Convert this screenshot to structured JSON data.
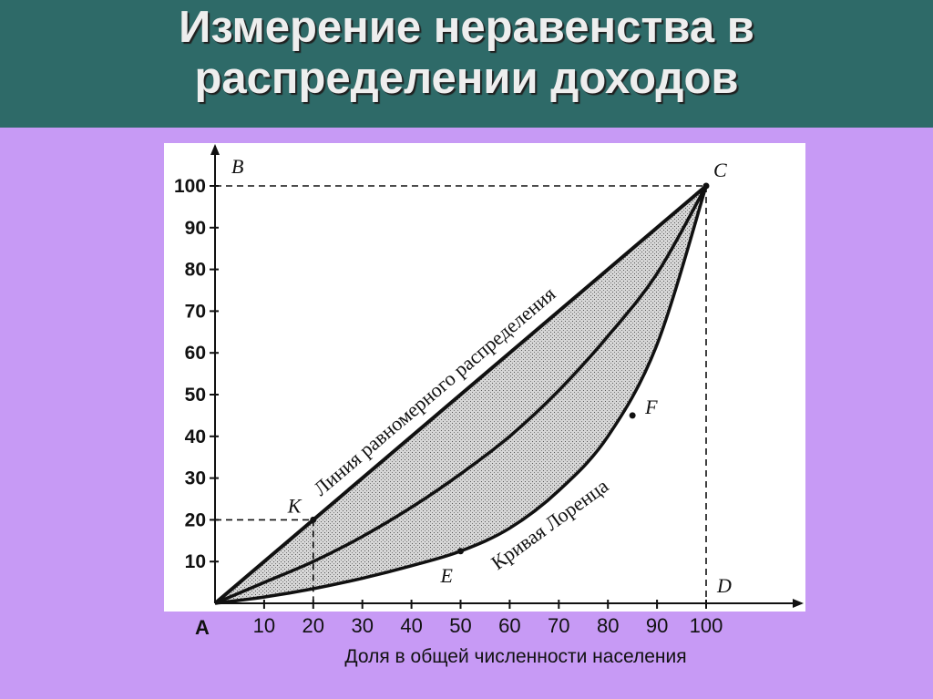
{
  "slide": {
    "title_line1": "Измерение неравенства в",
    "title_line2": "распределении доходов"
  },
  "chart_data": {
    "type": "line",
    "title": "",
    "xlabel": "Доля в общей численности населения",
    "ylabel": "",
    "xlim": [
      0,
      100
    ],
    "ylim": [
      0,
      100
    ],
    "x_ticks": [
      10,
      20,
      30,
      40,
      50,
      60,
      70,
      80,
      90,
      100
    ],
    "y_ticks": [
      10,
      20,
      30,
      40,
      50,
      60,
      70,
      80,
      90,
      100
    ],
    "origin_label": "A",
    "grid": false,
    "series": [
      {
        "name": "Линия равномерного распределения",
        "x": [
          0,
          100
        ],
        "y": [
          0,
          100
        ]
      },
      {
        "name": "",
        "x": [
          0,
          10,
          20,
          30,
          40,
          50,
          60,
          70,
          80,
          90,
          100
        ],
        "y": [
          0,
          5,
          10,
          16,
          23,
          31,
          40,
          51,
          64,
          79,
          100
        ]
      },
      {
        "name": "Кривая Лоренца",
        "x": [
          0,
          10,
          20,
          30,
          40,
          50,
          60,
          70,
          80,
          90,
          100
        ],
        "y": [
          0,
          1.5,
          3.5,
          6,
          9,
          12.5,
          18,
          27,
          40,
          62,
          100
        ]
      }
    ],
    "points": [
      {
        "label": "B",
        "x": 0,
        "y": 100
      },
      {
        "label": "C",
        "x": 100,
        "y": 100
      },
      {
        "label": "D",
        "x": 100,
        "y": 0
      },
      {
        "label": "K",
        "x": 20,
        "y": 20
      },
      {
        "label": "E",
        "x": 50,
        "y": 12.5
      },
      {
        "label": "F",
        "x": 85,
        "y": 45
      }
    ],
    "guide_lines": [
      {
        "from": [
          0,
          100
        ],
        "to": [
          100,
          100
        ]
      },
      {
        "from": [
          100,
          100
        ],
        "to": [
          100,
          0
        ]
      },
      {
        "from": [
          0,
          20
        ],
        "to": [
          20,
          20
        ]
      },
      {
        "from": [
          20,
          20
        ],
        "to": [
          20,
          0
        ]
      }
    ]
  }
}
